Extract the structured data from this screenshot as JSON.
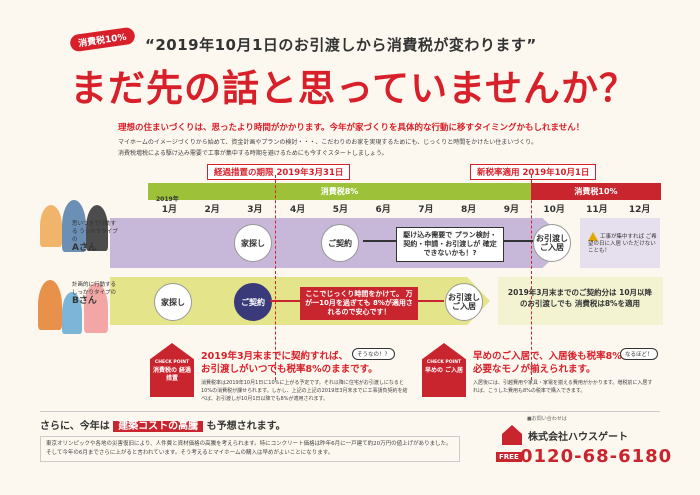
{
  "header": {
    "badge": "消費税10%",
    "subhead": "“2019年10月1日のお引渡しから消費税が変わります”",
    "headline": "まだ先の話と思っていませんか？"
  },
  "intro": {
    "lead": "理想の住まいづくりは、思ったより時間がかかります。今年が家づくりを具体的な行動に移すタイミングかもしれません！",
    "body_line1": "マイホームのイメージづくりから始めて、資金計画やプランの検討・・・、こだわりのお家を実現するためにも、じっくりと時間をかけたい住まいづくり。",
    "body_line2": "消費税増税による駆け込み需要で工事が集中する時期を避けるためにも今すぐスタートしましょう。"
  },
  "timeline": {
    "deadline_tag": "経過措置の期限 2019年3月31日",
    "newtax_tag": "新税率適用 2019年10月1日",
    "band_8": "消費税8%",
    "band_10": "消費税10%",
    "year_label": "2019年",
    "months": [
      "1月",
      "2月",
      "3月",
      "4月",
      "5月",
      "6月",
      "7月",
      "8月",
      "9月",
      "10月",
      "11月",
      "12月"
    ]
  },
  "row_a": {
    "desc": "思いつきで行動する うっかりタイプの",
    "name": "Aさん",
    "step_search": "家探し",
    "step_contract": "ご契約",
    "note": "駆け込み需要で プラン検討・契約・申請・お引渡しが 確定できないかも！?",
    "step_move": "お引渡し ご入居",
    "warning": "工事が集中すれば ご希望の日に入居 いただけないことも！"
  },
  "row_b": {
    "desc": "計画的に行動する しっかりタイプの",
    "name": "Bさん",
    "step_search": "家探し",
    "step_contract": "ご契約",
    "note": "ここでじっくり時間をかけて。 万が一10月を過ぎても 8%が適用されるので安心です！",
    "step_move": "お引渡し ご入居",
    "right_note": "2019年3月末までのご契約分は 10月以降のお引渡しでも 消費税は8%を適用"
  },
  "checkpoints": [
    {
      "badge_top": "CHECK POINT",
      "badge_main": "消費税の 経過措置",
      "title_line1": "2019年3月末までに契約すれば、",
      "title_line2": "お引渡しがいつでも税率8%のままです。",
      "bubble": "そうなの！？",
      "body": "消費税率は2019年10月1日に10%に上がる予定です。それ以降に住宅がお引渡しになると10%の消費税が課せられます。しかし、上記の上記の2019年3月末までに工事請負契約を結べば、お引渡しが10月1日以降でも8%が適用されます。"
    },
    {
      "badge_top": "CHECK POINT",
      "badge_main": "早めの ご入居",
      "title_line1": "早めのご入居で、入居後も税率8%で",
      "title_line2": "必要なモノが揃えられます。",
      "bubble": "なるほど！",
      "body": "入居後には、引越費用や家具・家電を揃える費用がかかります。増税前に入居すれば、こうした費用も8%の税率で購入できます。"
    }
  ],
  "cost": {
    "prefix": "さらに、今年は",
    "highlight": "建築コストの高騰",
    "suffix": "も予想されます。",
    "body": "東京オリンピックや各地の災害復旧により、人件費と資材価格の高騰を考えられます。特にコンクリート価格は昨年6月に一戸建て約20万円の値上げがありました。そして今年の6月までさらに上がると言われています。そう考えるとマイホームの購入は早めがよいことになります。"
  },
  "contact": {
    "note": "■お問い合わせは",
    "company": "株式会社ハウスゲート",
    "freecall": "FREE",
    "phone": "0120-68-6180"
  }
}
